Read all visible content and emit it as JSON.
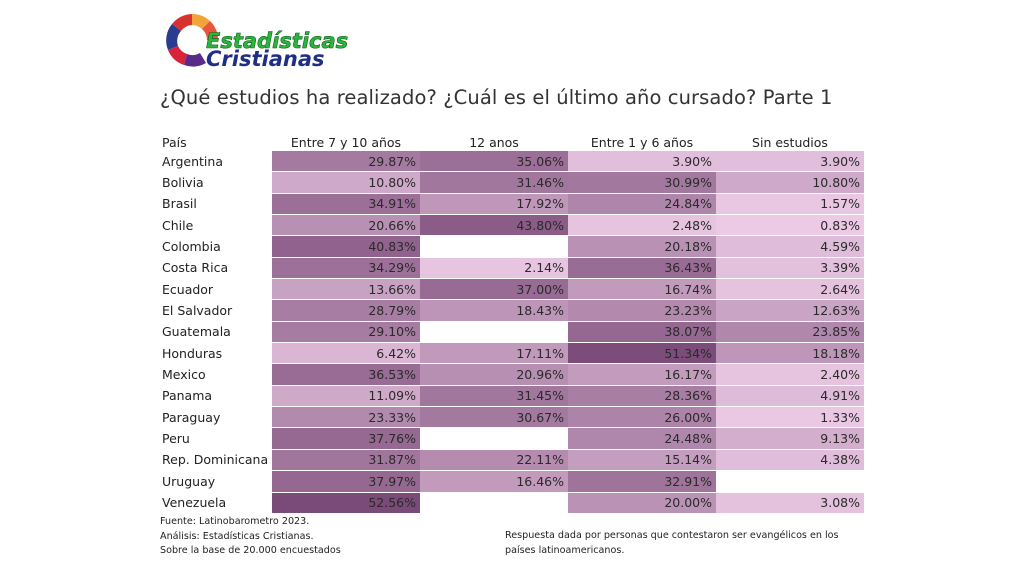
{
  "logo": {
    "line1": "Estadísticas",
    "line2": "Cristianas"
  },
  "title": "¿Qué estudios ha realizado? ¿Cuál es el último año cursado? Parte 1",
  "colors": {
    "min": "#f0cfe9",
    "max": "#7a4a78"
  },
  "chart_data": {
    "type": "table",
    "title": "¿Qué estudios ha realizado? ¿Cuál es el último año cursado? Parte 1",
    "row_header": "País",
    "columns": [
      "Entre 7 y 10 años",
      "12 anos",
      "Entre 1 y 6 años",
      "Sin estudios"
    ],
    "rows": [
      {
        "country": "Argentina",
        "values": [
          "29.87%",
          "35.06%",
          "3.90%",
          "3.90%"
        ]
      },
      {
        "country": "Bolivia",
        "values": [
          "10.80%",
          "31.46%",
          "30.99%",
          "10.80%"
        ]
      },
      {
        "country": "Brasil",
        "values": [
          "34.91%",
          "17.92%",
          "24.84%",
          "1.57%"
        ]
      },
      {
        "country": "Chile",
        "values": [
          "20.66%",
          "43.80%",
          "2.48%",
          "0.83%"
        ]
      },
      {
        "country": "Colombia",
        "values": [
          "40.83%",
          "",
          "20.18%",
          "4.59%"
        ]
      },
      {
        "country": "Costa Rica",
        "values": [
          "34.29%",
          "2.14%",
          "36.43%",
          "3.39%"
        ]
      },
      {
        "country": "Ecuador",
        "values": [
          "13.66%",
          "37.00%",
          "16.74%",
          "2.64%"
        ]
      },
      {
        "country": "El Salvador",
        "values": [
          "28.79%",
          "18.43%",
          "23.23%",
          "12.63%"
        ]
      },
      {
        "country": "Guatemala",
        "values": [
          "29.10%",
          "",
          "38.07%",
          "23.85%"
        ]
      },
      {
        "country": "Honduras",
        "values": [
          "6.42%",
          "17.11%",
          "51.34%",
          "18.18%"
        ]
      },
      {
        "country": "Mexico",
        "values": [
          "36.53%",
          "20.96%",
          "16.17%",
          "2.40%"
        ]
      },
      {
        "country": "Panama",
        "values": [
          "11.09%",
          "31.45%",
          "28.36%",
          "4.91%"
        ]
      },
      {
        "country": "Paraguay",
        "values": [
          "23.33%",
          "30.67%",
          "26.00%",
          "1.33%"
        ]
      },
      {
        "country": "Peru",
        "values": [
          "37.76%",
          "",
          "24.48%",
          "9.13%"
        ]
      },
      {
        "country": "Rep. Dominicana",
        "values": [
          "31.87%",
          "22.11%",
          "15.14%",
          "4.38%"
        ]
      },
      {
        "country": "Uruguay",
        "values": [
          "37.97%",
          "16.46%",
          "32.91%",
          ""
        ]
      },
      {
        "country": "Venezuela",
        "values": [
          "52.56%",
          "",
          "20.00%",
          "3.08%"
        ]
      }
    ]
  },
  "footer": {
    "source": "Fuente: Latinobarometro 2023.",
    "analysis": "Análisis: Estadísticas Cristianas.",
    "base": "Sobre la base de 20.000 encuestados",
    "note": "Respuesta dada por personas que contestaron ser evangélicos en los países latinoamericanos."
  }
}
